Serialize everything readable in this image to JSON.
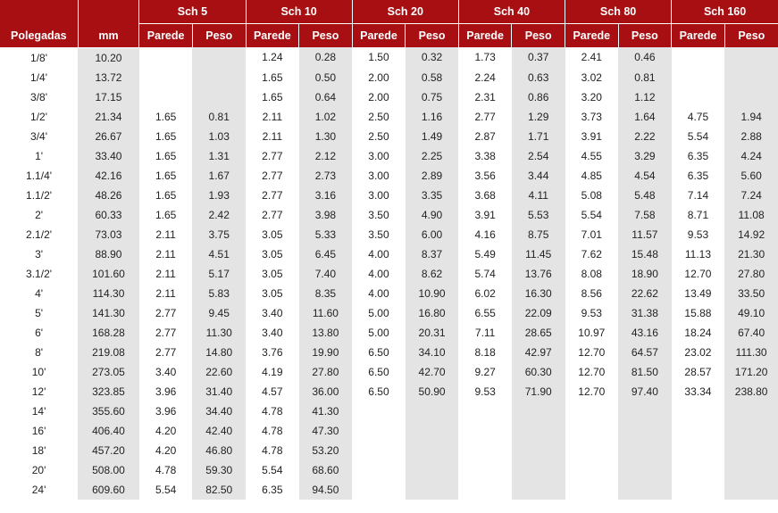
{
  "background_color": "#ffffff",
  "alt_row_color": "#e4e4e4",
  "header_bg": "#a70f13",
  "header_fg": "#ffffff",
  "font_family": "Arial",
  "font_size_body": 12,
  "font_size_header": 12.5,
  "columns": {
    "polegadas": "Polegadas",
    "mm": "mm",
    "parede": "Parede",
    "peso": "Peso"
  },
  "schedules": [
    "Sch 5",
    "Sch 10",
    "Sch 20",
    "Sch 40",
    "Sch 80",
    "Sch 160"
  ],
  "rows": [
    {
      "pol": "1/8'",
      "mm": "10.20",
      "s5": [
        "",
        ""
      ],
      "s10": [
        "1.24",
        "0.28"
      ],
      "s20": [
        "1.50",
        "0.32"
      ],
      "s40": [
        "1.73",
        "0.37"
      ],
      "s80": [
        "2.41",
        "0.46"
      ],
      "s160": [
        "",
        ""
      ]
    },
    {
      "pol": "1/4'",
      "mm": "13.72",
      "s5": [
        "",
        ""
      ],
      "s10": [
        "1.65",
        "0.50"
      ],
      "s20": [
        "2.00",
        "0.58"
      ],
      "s40": [
        "2.24",
        "0.63"
      ],
      "s80": [
        "3.02",
        "0.81"
      ],
      "s160": [
        "",
        ""
      ]
    },
    {
      "pol": "3/8'",
      "mm": "17.15",
      "s5": [
        "",
        ""
      ],
      "s10": [
        "1.65",
        "0.64"
      ],
      "s20": [
        "2.00",
        "0.75"
      ],
      "s40": [
        "2.31",
        "0.86"
      ],
      "s80": [
        "3.20",
        "1.12"
      ],
      "s160": [
        "",
        ""
      ]
    },
    {
      "pol": "1/2'",
      "mm": "21.34",
      "s5": [
        "1.65",
        "0.81"
      ],
      "s10": [
        "2.11",
        "1.02"
      ],
      "s20": [
        "2.50",
        "1.16"
      ],
      "s40": [
        "2.77",
        "1.29"
      ],
      "s80": [
        "3.73",
        "1.64"
      ],
      "s160": [
        "4.75",
        "1.94"
      ]
    },
    {
      "pol": "3/4'",
      "mm": "26.67",
      "s5": [
        "1.65",
        "1.03"
      ],
      "s10": [
        "2.11",
        "1.30"
      ],
      "s20": [
        "2.50",
        "1.49"
      ],
      "s40": [
        "2.87",
        "1.71"
      ],
      "s80": [
        "3.91",
        "2.22"
      ],
      "s160": [
        "5.54",
        "2.88"
      ]
    },
    {
      "pol": "1'",
      "mm": "33.40",
      "s5": [
        "1.65",
        "1.31"
      ],
      "s10": [
        "2.77",
        "2.12"
      ],
      "s20": [
        "3.00",
        "2.25"
      ],
      "s40": [
        "3.38",
        "2.54"
      ],
      "s80": [
        "4.55",
        "3.29"
      ],
      "s160": [
        "6.35",
        "4.24"
      ]
    },
    {
      "pol": "1.1/4'",
      "mm": "42.16",
      "s5": [
        "1.65",
        "1.67"
      ],
      "s10": [
        "2.77",
        "2.73"
      ],
      "s20": [
        "3.00",
        "2.89"
      ],
      "s40": [
        "3.56",
        "3.44"
      ],
      "s80": [
        "4.85",
        "4.54"
      ],
      "s160": [
        "6.35",
        "5.60"
      ]
    },
    {
      "pol": "1.1/2'",
      "mm": "48.26",
      "s5": [
        "1.65",
        "1.93"
      ],
      "s10": [
        "2.77",
        "3.16"
      ],
      "s20": [
        "3.00",
        "3.35"
      ],
      "s40": [
        "3.68",
        "4.11"
      ],
      "s80": [
        "5.08",
        "5.48"
      ],
      "s160": [
        "7.14",
        "7.24"
      ]
    },
    {
      "pol": "2'",
      "mm": "60.33",
      "s5": [
        "1.65",
        "2.42"
      ],
      "s10": [
        "2.77",
        "3.98"
      ],
      "s20": [
        "3.50",
        "4.90"
      ],
      "s40": [
        "3.91",
        "5.53"
      ],
      "s80": [
        "5.54",
        "7.58"
      ],
      "s160": [
        "8.71",
        "11.08"
      ]
    },
    {
      "pol": "2.1/2'",
      "mm": "73.03",
      "s5": [
        "2.11",
        "3.75"
      ],
      "s10": [
        "3.05",
        "5.33"
      ],
      "s20": [
        "3.50",
        "6.00"
      ],
      "s40": [
        "4.16",
        "8.75"
      ],
      "s80": [
        "7.01",
        "11.57"
      ],
      "s160": [
        "9.53",
        "14.92"
      ]
    },
    {
      "pol": "3'",
      "mm": "88.90",
      "s5": [
        "2.11",
        "4.51"
      ],
      "s10": [
        "3.05",
        "6.45"
      ],
      "s20": [
        "4.00",
        "8.37"
      ],
      "s40": [
        "5.49",
        "11.45"
      ],
      "s80": [
        "7.62",
        "15.48"
      ],
      "s160": [
        "11.13",
        "21.30"
      ]
    },
    {
      "pol": "3.1/2'",
      "mm": "101.60",
      "s5": [
        "2.11",
        "5.17"
      ],
      "s10": [
        "3.05",
        "7.40"
      ],
      "s20": [
        "4.00",
        "8.62"
      ],
      "s40": [
        "5.74",
        "13.76"
      ],
      "s80": [
        "8.08",
        "18.90"
      ],
      "s160": [
        "12.70",
        "27.80"
      ]
    },
    {
      "pol": "4'",
      "mm": "114.30",
      "s5": [
        "2.11",
        "5.83"
      ],
      "s10": [
        "3.05",
        "8.35"
      ],
      "s20": [
        "4.00",
        "10.90"
      ],
      "s40": [
        "6.02",
        "16.30"
      ],
      "s80": [
        "8.56",
        "22.62"
      ],
      "s160": [
        "13.49",
        "33.50"
      ]
    },
    {
      "pol": "5'",
      "mm": "141.30",
      "s5": [
        "2.77",
        "9.45"
      ],
      "s10": [
        "3.40",
        "11.60"
      ],
      "s20": [
        "5.00",
        "16.80"
      ],
      "s40": [
        "6.55",
        "22.09"
      ],
      "s80": [
        "9.53",
        "31.38"
      ],
      "s160": [
        "15.88",
        "49.10"
      ]
    },
    {
      "pol": "6'",
      "mm": "168.28",
      "s5": [
        "2.77",
        "11.30"
      ],
      "s10": [
        "3.40",
        "13.80"
      ],
      "s20": [
        "5.00",
        "20.31"
      ],
      "s40": [
        "7.11",
        "28.65"
      ],
      "s80": [
        "10.97",
        "43.16"
      ],
      "s160": [
        "18.24",
        "67.40"
      ]
    },
    {
      "pol": "8'",
      "mm": "219.08",
      "s5": [
        "2.77",
        "14.80"
      ],
      "s10": [
        "3.76",
        "19.90"
      ],
      "s20": [
        "6.50",
        "34.10"
      ],
      "s40": [
        "8.18",
        "42.97"
      ],
      "s80": [
        "12.70",
        "64.57"
      ],
      "s160": [
        "23.02",
        "111.30"
      ]
    },
    {
      "pol": "10'",
      "mm": "273.05",
      "s5": [
        "3.40",
        "22.60"
      ],
      "s10": [
        "4.19",
        "27.80"
      ],
      "s20": [
        "6.50",
        "42.70"
      ],
      "s40": [
        "9.27",
        "60.30"
      ],
      "s80": [
        "12.70",
        "81.50"
      ],
      "s160": [
        "28.57",
        "171.20"
      ]
    },
    {
      "pol": "12'",
      "mm": "323.85",
      "s5": [
        "3.96",
        "31.40"
      ],
      "s10": [
        "4.57",
        "36.00"
      ],
      "s20": [
        "6.50",
        "50.90"
      ],
      "s40": [
        "9.53",
        "71.90"
      ],
      "s80": [
        "12.70",
        "97.40"
      ],
      "s160": [
        "33.34",
        "238.80"
      ]
    },
    {
      "pol": "14'",
      "mm": "355.60",
      "s5": [
        "3.96",
        "34.40"
      ],
      "s10": [
        "4.78",
        "41.30"
      ],
      "s20": [
        "",
        ""
      ],
      "s40": [
        "",
        ""
      ],
      "s80": [
        "",
        ""
      ],
      "s160": [
        "",
        ""
      ]
    },
    {
      "pol": "16'",
      "mm": "406.40",
      "s5": [
        "4.20",
        "42.40"
      ],
      "s10": [
        "4.78",
        "47.30"
      ],
      "s20": [
        "",
        ""
      ],
      "s40": [
        "",
        ""
      ],
      "s80": [
        "",
        ""
      ],
      "s160": [
        "",
        ""
      ]
    },
    {
      "pol": "18'",
      "mm": "457.20",
      "s5": [
        "4.20",
        "46.80"
      ],
      "s10": [
        "4.78",
        "53.20"
      ],
      "s20": [
        "",
        ""
      ],
      "s40": [
        "",
        ""
      ],
      "s80": [
        "",
        ""
      ],
      "s160": [
        "",
        ""
      ]
    },
    {
      "pol": "20'",
      "mm": "508.00",
      "s5": [
        "4.78",
        "59.30"
      ],
      "s10": [
        "5.54",
        "68.60"
      ],
      "s20": [
        "",
        ""
      ],
      "s40": [
        "",
        ""
      ],
      "s80": [
        "",
        ""
      ],
      "s160": [
        "",
        ""
      ]
    },
    {
      "pol": "24'",
      "mm": "609.60",
      "s5": [
        "5.54",
        "82.50"
      ],
      "s10": [
        "6.35",
        "94.50"
      ],
      "s20": [
        "",
        ""
      ],
      "s40": [
        "",
        ""
      ],
      "s80": [
        "",
        ""
      ],
      "s160": [
        "",
        ""
      ]
    }
  ]
}
